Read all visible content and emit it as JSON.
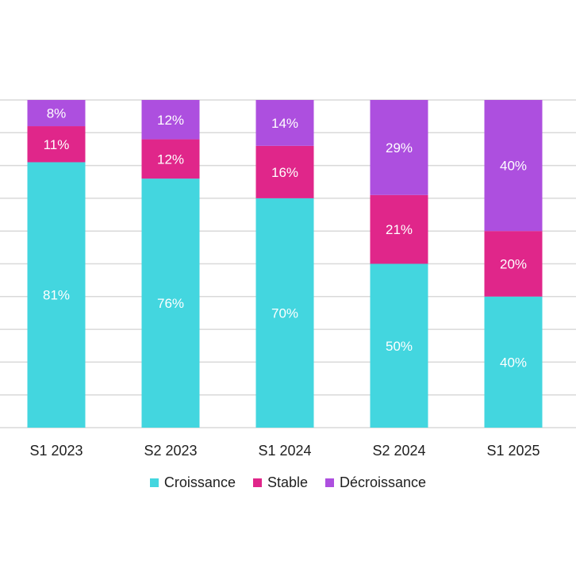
{
  "chart_data": {
    "type": "bar",
    "stacked": true,
    "percent_stacked": true,
    "categories": [
      "S1 2023",
      "S2 2023",
      "S1 2024",
      "S2 2024",
      "S1 2025"
    ],
    "series": [
      {
        "name": "Croissance",
        "color": "#43D6DF",
        "values": [
          81,
          76,
          70,
          50,
          40
        ],
        "labels": [
          "81%",
          "76%",
          "70%",
          "50%",
          "40%"
        ]
      },
      {
        "name": "Stable",
        "color": "#E0268A",
        "values": [
          11,
          12,
          16,
          21,
          20
        ],
        "labels": [
          "11%",
          "12%",
          "16%",
          "21%",
          "20%"
        ]
      },
      {
        "name": "Décroissance",
        "color": "#AD4FDF",
        "values": [
          8,
          12,
          14,
          29,
          40
        ],
        "labels": [
          "8%",
          "12%",
          "14%",
          "29%",
          "40%"
        ]
      }
    ],
    "ylim": [
      0,
      100
    ],
    "grid": true,
    "legend_position": "bottom"
  }
}
